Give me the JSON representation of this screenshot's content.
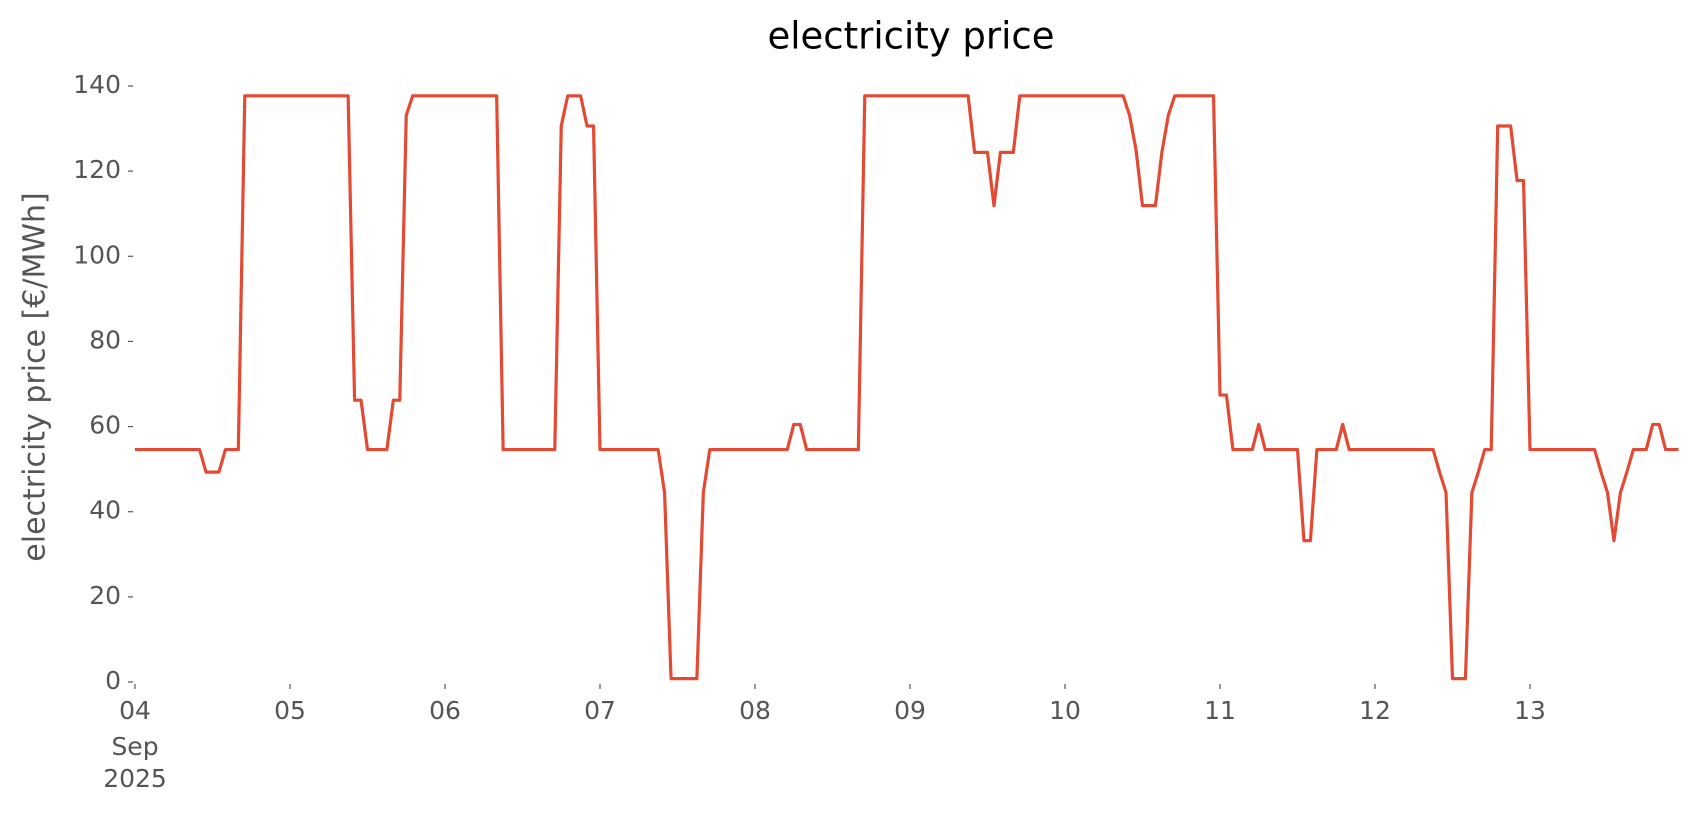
{
  "chart_data": {
    "type": "line",
    "title": "electricity price",
    "ylabel": "electricity price [€/MWh]",
    "x": [
      "2025-09-04T00:00",
      "2025-09-04T10:00",
      "2025-09-04T11:00",
      "2025-09-04T13:00",
      "2025-09-04T14:00",
      "2025-09-04T16:00",
      "2025-09-04T17:00",
      "2025-09-05T09:00",
      "2025-09-05T10:00",
      "2025-09-05T11:00",
      "2025-09-05T12:00",
      "2025-09-05T15:00",
      "2025-09-05T16:00",
      "2025-09-05T17:00",
      "2025-09-05T18:00",
      "2025-09-05T19:00",
      "2025-09-06T08:00",
      "2025-09-06T09:00",
      "2025-09-06T17:00",
      "2025-09-06T18:00",
      "2025-09-06T19:00",
      "2025-09-06T21:00",
      "2025-09-06T22:00",
      "2025-09-06T23:00",
      "2025-09-07T00:00",
      "2025-09-07T09:00",
      "2025-09-07T10:00",
      "2025-09-07T11:00",
      "2025-09-07T15:00",
      "2025-09-07T16:00",
      "2025-09-07T17:00",
      "2025-09-08T05:00",
      "2025-09-08T06:00",
      "2025-09-08T07:00",
      "2025-09-08T08:00",
      "2025-09-08T16:00",
      "2025-09-08T17:00",
      "2025-09-09T09:00",
      "2025-09-09T10:00",
      "2025-09-09T12:00",
      "2025-09-09T13:00",
      "2025-09-09T14:00",
      "2025-09-09T16:00",
      "2025-09-09T17:00",
      "2025-09-10T09:00",
      "2025-09-10T10:00",
      "2025-09-10T11:00",
      "2025-09-10T12:00",
      "2025-09-10T14:00",
      "2025-09-10T15:00",
      "2025-09-10T16:00",
      "2025-09-10T17:00",
      "2025-09-10T23:00",
      "2025-09-11T00:00",
      "2025-09-11T01:00",
      "2025-09-11T02:00",
      "2025-09-11T05:00",
      "2025-09-11T06:00",
      "2025-09-11T07:00",
      "2025-09-11T12:00",
      "2025-09-11T13:00",
      "2025-09-11T14:00",
      "2025-09-11T15:00",
      "2025-09-11T18:00",
      "2025-09-11T19:00",
      "2025-09-11T20:00",
      "2025-09-12T09:00",
      "2025-09-12T10:00",
      "2025-09-12T11:00",
      "2025-09-12T12:00",
      "2025-09-12T14:00",
      "2025-09-12T15:00",
      "2025-09-12T16:00",
      "2025-09-12T17:00",
      "2025-09-12T18:00",
      "2025-09-12T19:00",
      "2025-09-12T21:00",
      "2025-09-12T22:00",
      "2025-09-12T23:00",
      "2025-09-13T00:00",
      "2025-09-13T10:00",
      "2025-09-13T11:00",
      "2025-09-13T12:00",
      "2025-09-13T13:00",
      "2025-09-13T14:00",
      "2025-09-13T15:00",
      "2025-09-13T16:00",
      "2025-09-13T18:00",
      "2025-09-13T19:00",
      "2025-09-13T20:00",
      "2025-09-13T21:00",
      "2025-09-13T23:00"
    ],
    "series": [
      {
        "color": "#e24a33",
        "values": [
          54.6,
          54.6,
          49.3,
          49.3,
          54.6,
          54.6,
          137.7,
          137.7,
          66.2,
          66.2,
          54.6,
          54.6,
          66.2,
          66.2,
          133.1,
          137.7,
          137.7,
          54.6,
          54.6,
          130.6,
          137.7,
          137.7,
          130.6,
          130.6,
          54.6,
          54.6,
          44.5,
          0.8,
          0.8,
          44.5,
          54.6,
          54.6,
          60.5,
          60.5,
          54.6,
          54.6,
          137.7,
          137.7,
          124.4,
          124.4,
          111.9,
          124.4,
          124.4,
          137.7,
          137.7,
          133.1,
          125,
          111.9,
          111.9,
          124.4,
          133.1,
          137.7,
          137.7,
          67.4,
          67.4,
          54.6,
          54.6,
          60.5,
          54.6,
          54.6,
          33.2,
          33.2,
          54.6,
          54.6,
          60.5,
          54.6,
          54.6,
          49.3,
          44.5,
          0.8,
          0.8,
          44.5,
          49.3,
          54.6,
          54.6,
          130.6,
          130.6,
          117.8,
          117.8,
          54.6,
          54.6,
          49.3,
          44.5,
          33.2,
          44.5,
          49.3,
          54.6,
          54.6,
          60.5,
          60.5,
          54.6,
          54.6
        ]
      }
    ],
    "xlim": [
      "2025-09-04T00:00",
      "2025-09-14T00:00"
    ],
    "xticks": [
      {
        "value": "2025-09-04T00:00",
        "label": "04"
      },
      {
        "value": "2025-09-05T00:00",
        "label": "05"
      },
      {
        "value": "2025-09-06T00:00",
        "label": "06"
      },
      {
        "value": "2025-09-07T00:00",
        "label": "07"
      },
      {
        "value": "2025-09-08T00:00",
        "label": "08"
      },
      {
        "value": "2025-09-09T00:00",
        "label": "09"
      },
      {
        "value": "2025-09-10T00:00",
        "label": "10"
      },
      {
        "value": "2025-09-11T00:00",
        "label": "11"
      },
      {
        "value": "2025-09-12T00:00",
        "label": "12"
      },
      {
        "value": "2025-09-13T00:00",
        "label": "13"
      }
    ],
    "x_date_lines": [
      "Sep",
      "2025"
    ],
    "ylim": [
      0,
      140
    ],
    "yticks": [
      0,
      20,
      40,
      60,
      80,
      100,
      120,
      140
    ],
    "grid": false
  }
}
